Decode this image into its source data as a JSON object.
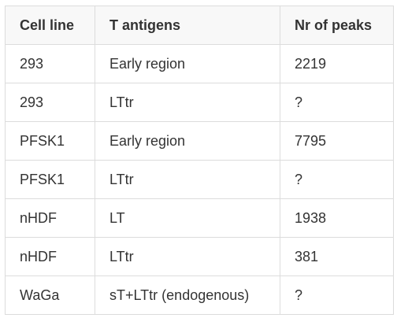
{
  "table": {
    "header": [
      "Cell line",
      "T antigens",
      "Nr of peaks"
    ],
    "rows": [
      [
        "293",
        "Early region",
        "2219"
      ],
      [
        "293",
        "LTtr",
        "?"
      ],
      [
        "PFSK1",
        "Early region",
        "7795"
      ],
      [
        "PFSK1",
        "LTtr",
        "?"
      ],
      [
        "nHDF",
        "LT",
        "1938"
      ],
      [
        "nHDF",
        "LTtr",
        "381"
      ],
      [
        "WaGa",
        "sT+LTtr (endogenous)",
        "?"
      ]
    ]
  }
}
